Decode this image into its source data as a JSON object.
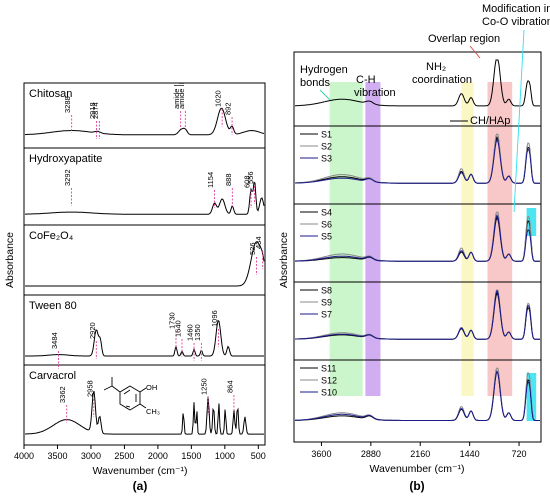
{
  "panel_a": {
    "caption": "(a)",
    "ylabel": "Absorbance",
    "xlabel": "Wavenumber (cm⁻¹)",
    "xticks": [
      "4000",
      "3500",
      "3000",
      "2500",
      "2000",
      "1500",
      "1000",
      "500"
    ],
    "panels": [
      {
        "name": "Chitosan",
        "peaks": [
          "3288",
          "2918",
          "2874",
          "amide I",
          "amide II",
          "1020",
          "892"
        ]
      },
      {
        "name": "Hydroxyapatite",
        "peaks": [
          "3292",
          "1154",
          "888",
          "608",
          "556"
        ]
      },
      {
        "name": "CoFe₂O₄",
        "peaks": [
          "526",
          "434"
        ]
      },
      {
        "name": "Tween 80",
        "peaks": [
          "3484",
          "2920",
          "1730",
          "1640",
          "1460",
          "1350",
          "1096"
        ]
      },
      {
        "name": "Carvacrol",
        "peaks": [
          "3362",
          "2958",
          "1250",
          "864"
        ],
        "structure_labels": [
          "OH",
          "CH₃"
        ]
      }
    ]
  },
  "panel_b": {
    "caption": "(b)",
    "ylabel": "Absorbance",
    "xlabel": "Wavenumber (cm⁻¹)",
    "xticks": [
      "3600",
      "2880",
      "2160",
      "1440",
      "720"
    ],
    "region_labels": {
      "hydrogen": [
        "Hydrogen",
        "bonds"
      ],
      "ch": [
        "C-H",
        "vibration"
      ],
      "nh2": [
        "NH₂",
        "coordination"
      ],
      "overlap": "Overlap region",
      "modification": [
        "Modification in",
        "Co-O vibration"
      ]
    },
    "top_label": "CH/HAp",
    "groups": [
      {
        "labels": [
          "S1",
          "S2",
          "S3"
        ]
      },
      {
        "labels": [
          "S4",
          "S6",
          "S5"
        ]
      },
      {
        "labels": [
          "S8",
          "S9",
          "S7"
        ]
      },
      {
        "labels": [
          "S11",
          "S12",
          "S10"
        ]
      }
    ]
  },
  "colors": {
    "green_band": "#c8f5c8",
    "purple_band": "#c9a0f0",
    "yellow_band": "#fbf7c2",
    "pink_band": "#f8c4c4",
    "cyan_band": "#2fe0f0",
    "peak_marker": "#e0409a",
    "series_black": "#000000",
    "series_gray": "#888888",
    "series_navy": "#1a1a8c"
  },
  "chart_data": [
    {
      "type": "line",
      "title": "",
      "xlabel": "Wavenumber (cm⁻¹)",
      "ylabel": "Absorbance",
      "xlim": [
        4000,
        400
      ],
      "series": [
        {
          "name": "Chitosan",
          "x": [
            3288,
            2918,
            2874,
            1650,
            1590,
            1020,
            892
          ],
          "y": [
            0.2,
            0.15,
            0.12,
            0.3,
            0.28,
            0.9,
            0.35
          ]
        },
        {
          "name": "Hydroxyapatite",
          "x": [
            3292,
            1154,
            888,
            608,
            556
          ],
          "y": [
            0.08,
            0.35,
            0.3,
            0.55,
            0.7
          ]
        },
        {
          "name": "CoFe₂O₄",
          "x": [
            526,
            434
          ],
          "y": [
            0.95,
            0.85
          ]
        },
        {
          "name": "Tween 80",
          "x": [
            3484,
            2920,
            1730,
            1640,
            1460,
            1350,
            1096
          ],
          "y": [
            0.05,
            0.6,
            0.25,
            0.15,
            0.2,
            0.15,
            0.9
          ]
        },
        {
          "name": "Carvacrol",
          "x": [
            3362,
            2958,
            1250,
            864
          ],
          "y": [
            0.3,
            0.75,
            0.55,
            0.45
          ]
        }
      ]
    },
    {
      "type": "line",
      "title": "",
      "xlabel": "Wavenumber (cm⁻¹)",
      "ylabel": "Absorbance",
      "xlim": [
        4000,
        400
      ],
      "bands": [
        [
          3480,
          3000,
          "Hydrogen bonds"
        ],
        [
          2960,
          2740,
          "C-H vibration"
        ],
        [
          1560,
          1380,
          "NH₂ coordination"
        ],
        [
          1180,
          820,
          "Overlap region"
        ],
        [
          610,
          470,
          "Modification in Co-O vibration"
        ]
      ],
      "series": [
        {
          "name": "CH/HAp",
          "x": [
            3300,
            2900,
            1560,
            1030,
            600
          ],
          "y": [
            0.3,
            0.28,
            0.4,
            0.95,
            0.6
          ]
        },
        {
          "name": "S1",
          "x": [
            3300,
            2900,
            1560,
            1030,
            600
          ],
          "y": [
            0.35,
            0.3,
            0.45,
            0.9,
            0.7
          ]
        },
        {
          "name": "S2",
          "x": [
            3300,
            2900,
            1560,
            1030,
            600
          ],
          "y": [
            0.4,
            0.33,
            0.5,
            0.95,
            0.75
          ]
        },
        {
          "name": "S3",
          "x": [
            3300,
            2900,
            1560,
            1030,
            600
          ],
          "y": [
            0.3,
            0.28,
            0.4,
            0.75,
            0.65
          ]
        }
      ]
    }
  ]
}
